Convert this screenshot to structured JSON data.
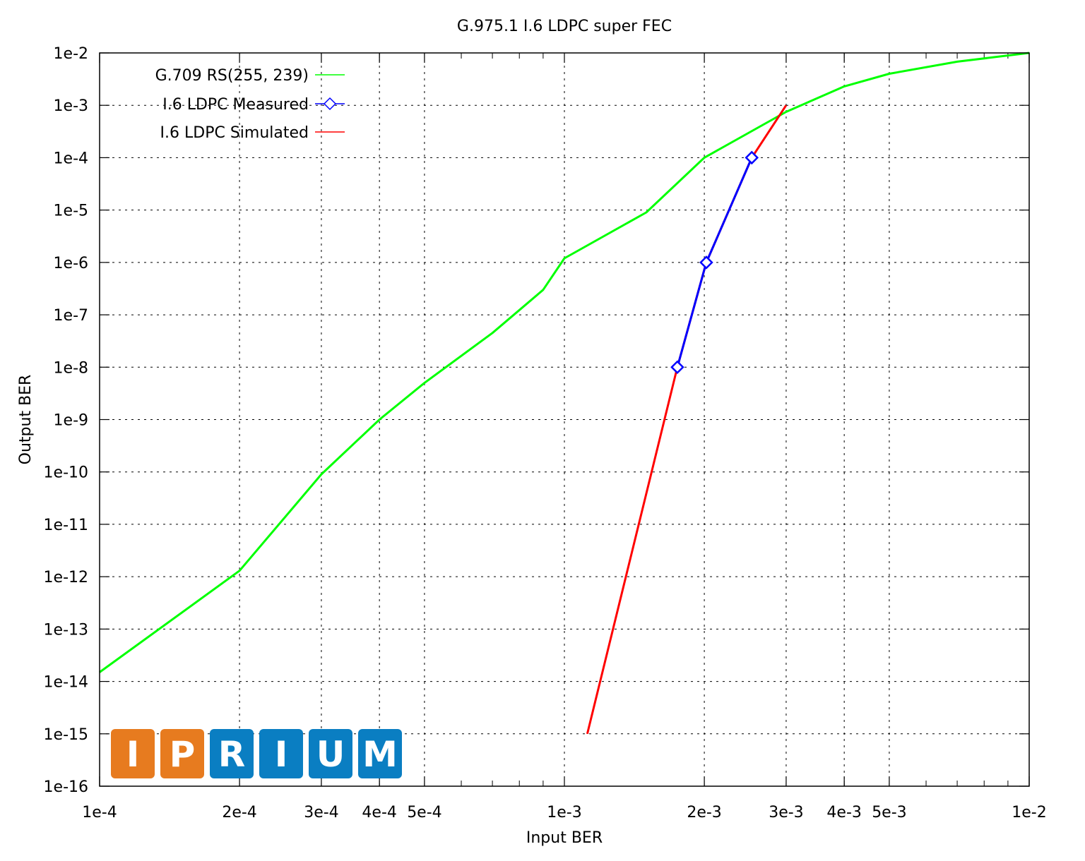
{
  "chart_data": {
    "type": "line",
    "title": "G.975.1 I.6 LDPC super FEC",
    "xlabel": "Input BER",
    "ylabel": "Output BER",
    "x_scale": "log",
    "y_scale": "log",
    "xlim": [
      0.0001,
      0.01
    ],
    "ylim": [
      1e-16,
      0.01
    ],
    "grid": true,
    "legend_position": "top-left",
    "x_ticks": [
      {
        "value": 0.0001,
        "label": "1e-4"
      },
      {
        "value": 0.0002,
        "label": "2e-4"
      },
      {
        "value": 0.0003,
        "label": "3e-4"
      },
      {
        "value": 0.0004,
        "label": "4e-4"
      },
      {
        "value": 0.0005,
        "label": "5e-4"
      },
      {
        "value": 0.001,
        "label": "1e-3"
      },
      {
        "value": 0.002,
        "label": "2e-3"
      },
      {
        "value": 0.003,
        "label": "3e-3"
      },
      {
        "value": 0.004,
        "label": "4e-3"
      },
      {
        "value": 0.005,
        "label": "5e-3"
      },
      {
        "value": 0.01,
        "label": "1e-2"
      }
    ],
    "y_ticks": [
      {
        "value": 0.01,
        "label": "1e-2"
      },
      {
        "value": 0.001,
        "label": "1e-3"
      },
      {
        "value": 0.0001,
        "label": "1e-4"
      },
      {
        "value": 1e-05,
        "label": "1e-5"
      },
      {
        "value": 1e-06,
        "label": "1e-6"
      },
      {
        "value": 1e-07,
        "label": "1e-7"
      },
      {
        "value": 1e-08,
        "label": "1e-8"
      },
      {
        "value": 1e-09,
        "label": "1e-9"
      },
      {
        "value": 1e-10,
        "label": "1e-10"
      },
      {
        "value": 1e-11,
        "label": "1e-11"
      },
      {
        "value": 1e-12,
        "label": "1e-12"
      },
      {
        "value": 1e-13,
        "label": "1e-13"
      },
      {
        "value": 1e-14,
        "label": "1e-14"
      },
      {
        "value": 1e-15,
        "label": "1e-15"
      },
      {
        "value": 1e-16,
        "label": "1e-16"
      }
    ],
    "series": [
      {
        "name": "G.709 RS(255, 239)",
        "color": "#00ff00",
        "marker": "none",
        "x": [
          0.0001,
          0.0002,
          0.0003,
          0.0004,
          0.0005,
          0.0007,
          0.0009,
          0.001,
          0.0015,
          0.002,
          0.003,
          0.004,
          0.005,
          0.007,
          0.01
        ],
        "y": [
          1.5e-14,
          1.3e-12,
          9e-11,
          1e-09,
          5e-09,
          4.5e-08,
          3e-07,
          1.2e-06,
          9e-06,
          0.0001,
          0.00075,
          0.0023,
          0.004,
          0.0068,
          0.01
        ]
      },
      {
        "name": "I.6 LDPC Measured",
        "color": "#0000ff",
        "marker": "diamond",
        "x": [
          0.00175,
          0.00202,
          0.00253
        ],
        "y": [
          1e-08,
          1e-06,
          0.0001
        ]
      },
      {
        "name": "I.6 LDPC Simulated",
        "color": "#ff0000",
        "marker": "none",
        "x": [
          0.00112,
          0.00175,
          0.00202,
          0.00253,
          0.003
        ],
        "y": [
          1e-15,
          1e-08,
          1e-06,
          0.0001,
          0.001
        ]
      }
    ]
  },
  "logo": {
    "letters": [
      "I",
      "P",
      "R",
      "I",
      "U",
      "M"
    ],
    "colors": [
      "#e77b1f",
      "#e77b1f",
      "#0a7ec2",
      "#0a7ec2",
      "#0a7ec2",
      "#0a7ec2"
    ]
  }
}
